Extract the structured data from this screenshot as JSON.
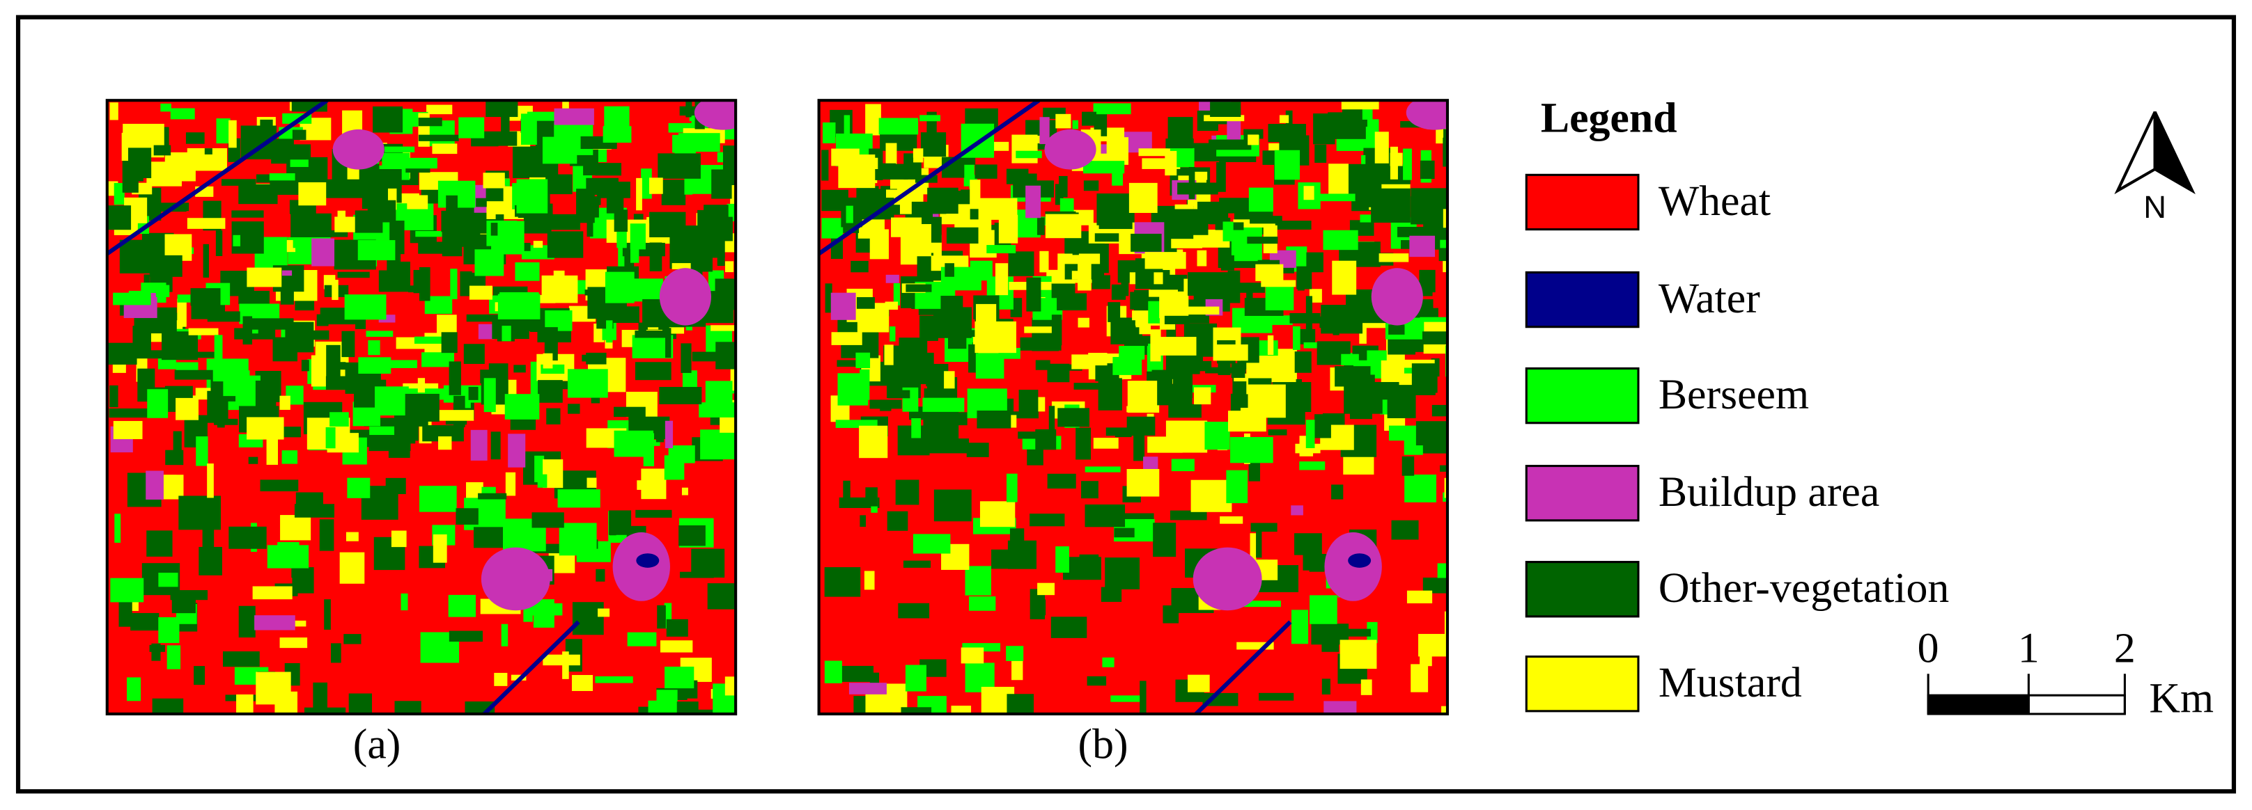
{
  "legend": {
    "title": "Legend",
    "items": [
      {
        "label": "Wheat",
        "color": "#ff0000"
      },
      {
        "label": "Water",
        "color": "#00008b"
      },
      {
        "label": "Berseem",
        "color": "#00ff00"
      },
      {
        "label": "Buildup area",
        "color": "#c832b4"
      },
      {
        "label": "Other-vegetation",
        "color": "#006400"
      },
      {
        "label": "Mustard",
        "color": "#ffff00"
      }
    ]
  },
  "panels": [
    {
      "caption": "(a)"
    },
    {
      "caption": "(b)"
    }
  ],
  "north_arrow": {
    "label": "N"
  },
  "scale_bar": {
    "ticks": [
      "0",
      "1",
      "2"
    ],
    "unit": "Km"
  }
}
